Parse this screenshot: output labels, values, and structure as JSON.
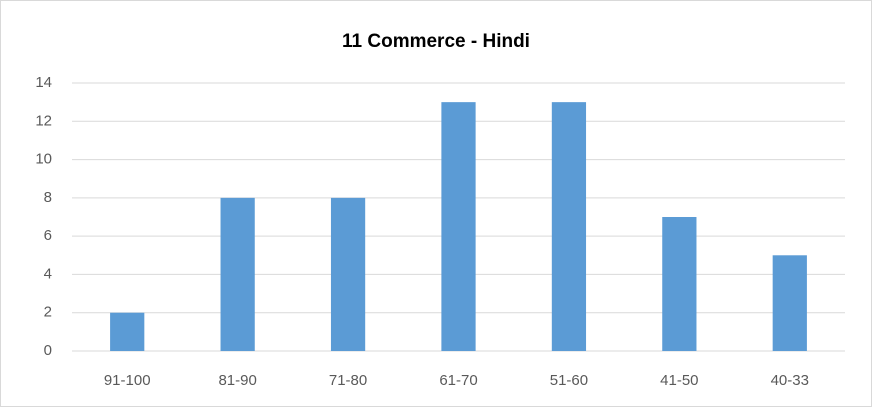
{
  "chart_data": {
    "type": "bar",
    "title": "11 Commerce - Hindi",
    "categories": [
      "91-100",
      "81-90",
      "71-80",
      "61-70",
      "51-60",
      "41-50",
      "40-33"
    ],
    "values": [
      2,
      8,
      8,
      13,
      13,
      7,
      5
    ],
    "color": "#5b9bd5",
    "ylim": [
      0,
      14
    ],
    "yticks": [
      0,
      2,
      4,
      6,
      8,
      10,
      12,
      14
    ],
    "grid": true
  }
}
